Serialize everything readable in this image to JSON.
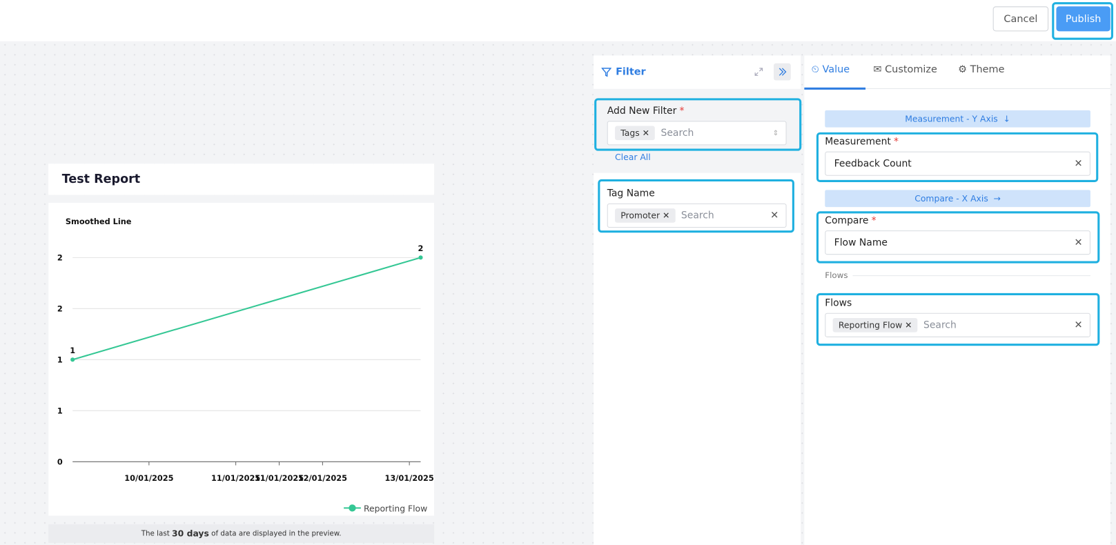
{
  "header": {
    "cancel": "Cancel",
    "publish": "Publish"
  },
  "report": {
    "title": "Test Report",
    "footer": {
      "before": "The last ",
      "bold": "30 days",
      "after": " of data are displayed in the preview."
    }
  },
  "chart_data": {
    "type": "line",
    "title": "Smoothed Line",
    "x": [
      9.12,
      13.13
    ],
    "series": [
      {
        "name": "Reporting Flow",
        "color": "#34c794",
        "values": [
          1,
          2
        ]
      }
    ],
    "xlim": [
      9.12,
      13.13
    ],
    "xticks": [
      {
        "value": 10,
        "label": "10/01/2025"
      },
      {
        "value": 11,
        "label": "11/01/2025"
      },
      {
        "value": 11.5,
        "label": "11/01/2025"
      },
      {
        "value": 12,
        "label": "12/01/2025"
      },
      {
        "value": 13,
        "label": "13/01/2025"
      }
    ],
    "ylim": [
      0,
      2
    ],
    "yticks": [
      {
        "value": 0,
        "label": "0"
      },
      {
        "value": 0.5,
        "label": "1"
      },
      {
        "value": 1,
        "label": "1"
      },
      {
        "value": 1.5,
        "label": "2"
      },
      {
        "value": 2,
        "label": "2"
      }
    ],
    "grid": true
  },
  "filter": {
    "title": "Filter",
    "add_filter": {
      "label": "Add New Filter",
      "required": "*",
      "chip": "Tags",
      "placeholder": "Search"
    },
    "clear_all": "Clear All",
    "tag_name": {
      "label": "Tag Name",
      "chip": "Promoter",
      "placeholder": "Search"
    }
  },
  "settings": {
    "tabs": [
      "Value",
      "Customize",
      "Theme"
    ],
    "measurement_axis": "Measurement - Y Axis",
    "measurement": {
      "label": "Measurement",
      "required": "*",
      "value": "Feedback Count"
    },
    "compare_axis": "Compare - X Axis",
    "compare": {
      "label": "Compare",
      "required": "*",
      "value": "Flow Name"
    },
    "flows_divider": "Flows",
    "flows": {
      "label": "Flows",
      "chip": "Reporting Flow",
      "placeholder": "Search"
    }
  }
}
